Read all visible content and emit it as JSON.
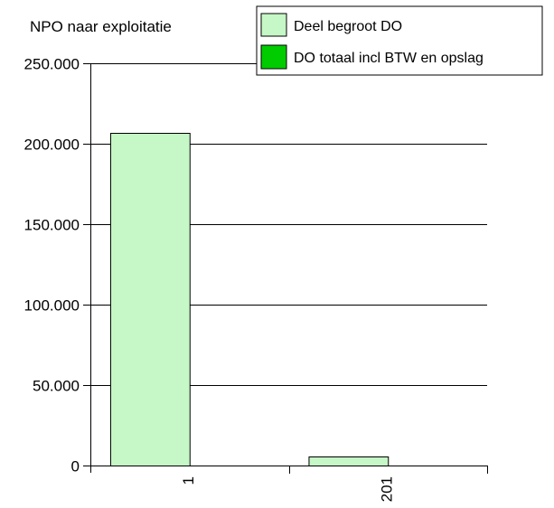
{
  "colors": {
    "background": "#ffffff",
    "series_light": "#c6f7c6",
    "series_dark": "#00cc00",
    "gridline": "#000000",
    "axis": "#000000"
  },
  "chart_data": {
    "type": "bar",
    "title": "NPO naar exploitatie",
    "categories": [
      "1",
      "201"
    ],
    "series": [
      {
        "name": "Deel begroot DO",
        "values": [
          206500,
          5500
        ],
        "color": "#c6f7c6"
      },
      {
        "name": "DO totaal incl BTW en opslag",
        "values": [
          0,
          0
        ],
        "color": "#00cc00"
      }
    ],
    "ylim": [
      0,
      250000
    ],
    "yticks": [
      0,
      50000,
      100000,
      150000,
      200000,
      250000
    ],
    "ytick_labels": [
      "0",
      "50.000",
      "100.000",
      "150.000",
      "200.000",
      "250.000"
    ],
    "xlabel": "",
    "ylabel": "",
    "grid": true,
    "legend_position": "top-right"
  }
}
